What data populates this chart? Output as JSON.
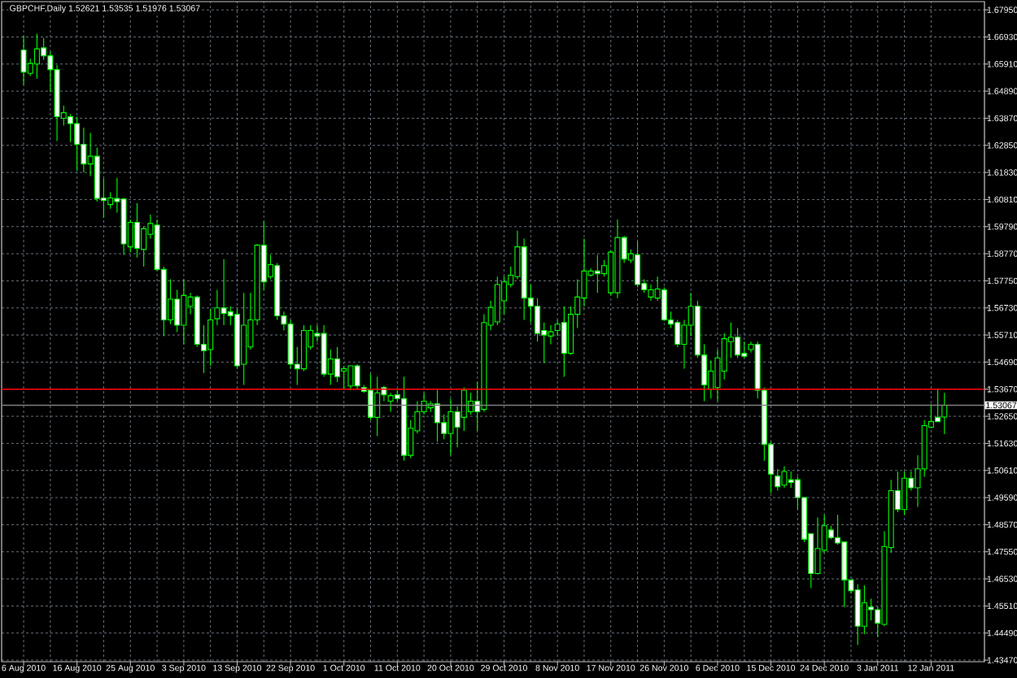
{
  "chart_data": {
    "type": "candlestick",
    "title": "GBPCHF,Daily 1.52621 1.53535 1.51976 1.53067",
    "categories": [
      "6 Aug 2010",
      null,
      null,
      null,
      null,
      null,
      null,
      null,
      "16 Aug 2010",
      null,
      null,
      null,
      null,
      null,
      null,
      null,
      "25 Aug 2010",
      null,
      null,
      null,
      null,
      null,
      null,
      null,
      "3 Sep 2010",
      null,
      null,
      null,
      null,
      null,
      null,
      null,
      "13 Sep 2010",
      null,
      null,
      null,
      null,
      null,
      null,
      null,
      "22 Sep 2010",
      null,
      null,
      null,
      null,
      null,
      null,
      null,
      "1 Oct 2010",
      null,
      null,
      null,
      null,
      null,
      null,
      null,
      "11 Oct 2010",
      null,
      null,
      null,
      null,
      null,
      null,
      null,
      "20 Oct 2010",
      null,
      null,
      null,
      null,
      null,
      null,
      null,
      "29 Oct 2010",
      null,
      null,
      null,
      null,
      null,
      null,
      null,
      "8 Nov 2010",
      null,
      null,
      null,
      null,
      null,
      null,
      null,
      "17 Nov 2010",
      null,
      null,
      null,
      null,
      null,
      null,
      null,
      "26 Nov 2010",
      null,
      null,
      null,
      null,
      null,
      null,
      null,
      "6 Dec 2010",
      null,
      null,
      null,
      null,
      null,
      null,
      null,
      "15 Dec 2010",
      null,
      null,
      null,
      null,
      null,
      null,
      null,
      "24 Dec 2010",
      null,
      null,
      null,
      null,
      null,
      null,
      null,
      "3 Jan 2011",
      null,
      null,
      null,
      null,
      null,
      null,
      null,
      "12 Jan 2011",
      null,
      null
    ],
    "ohlc": [
      [
        1.6644,
        1.6697,
        1.6513,
        1.6561
      ],
      [
        1.6556,
        1.6611,
        1.6546,
        1.6593
      ],
      [
        1.6591,
        1.6705,
        1.6536,
        1.6648
      ],
      [
        1.6652,
        1.6689,
        1.6607,
        1.6622
      ],
      [
        1.6622,
        1.6638,
        1.6485,
        1.657
      ],
      [
        1.657,
        1.6587,
        1.6301,
        1.6393
      ],
      [
        1.6387,
        1.6434,
        1.6359,
        1.6408
      ],
      [
        1.6393,
        1.6403,
        1.6297,
        1.6367
      ],
      [
        1.6367,
        1.6393,
        1.6189,
        1.6289
      ],
      [
        1.6289,
        1.6352,
        1.6183,
        1.6215
      ],
      [
        1.6215,
        1.6332,
        1.6169,
        1.6244
      ],
      [
        1.6244,
        1.6277,
        1.6073,
        1.6085
      ],
      [
        1.6087,
        1.6159,
        1.6012,
        1.6077
      ],
      [
        1.6062,
        1.6108,
        1.6046,
        1.6087
      ],
      [
        1.6085,
        1.6163,
        1.6032,
        1.6073
      ],
      [
        1.6083,
        1.6087,
        1.5873,
        1.5914
      ],
      [
        1.5903,
        1.6006,
        1.5883,
        1.5995
      ],
      [
        1.5995,
        1.6067,
        1.5863,
        1.5897
      ],
      [
        1.5893,
        1.5979,
        1.5828,
        1.5971
      ],
      [
        1.595,
        1.6024,
        1.5934,
        1.5991
      ],
      [
        1.5985,
        1.6006,
        1.5812,
        1.5818
      ],
      [
        1.5818,
        1.5828,
        1.5567,
        1.5628
      ],
      [
        1.5628,
        1.5781,
        1.5612,
        1.5706
      ],
      [
        1.5706,
        1.5741,
        1.5583,
        1.5608
      ],
      [
        1.5608,
        1.5781,
        1.5536,
        1.572
      ],
      [
        1.5679,
        1.573,
        1.5649,
        1.5714
      ],
      [
        1.5714,
        1.572,
        1.5526,
        1.5536
      ],
      [
        1.5536,
        1.5608,
        1.5428,
        1.5512
      ],
      [
        1.5516,
        1.5669,
        1.5455,
        1.5628
      ],
      [
        1.5632,
        1.5741,
        1.5608,
        1.5673
      ],
      [
        1.5673,
        1.5857,
        1.5608,
        1.5652
      ],
      [
        1.5659,
        1.5679,
        1.5608,
        1.5643
      ],
      [
        1.5649,
        1.5669,
        1.5444,
        1.5455
      ],
      [
        1.5461,
        1.573,
        1.5383,
        1.5608
      ],
      [
        1.5526,
        1.573,
        1.5516,
        1.5628
      ],
      [
        1.5628,
        1.5914,
        1.5608,
        1.5909
      ],
      [
        1.5909,
        1.5999,
        1.5741,
        1.5771
      ],
      [
        1.5791,
        1.5873,
        1.5781,
        1.5836
      ],
      [
        1.5832,
        1.5842,
        1.5628,
        1.5643
      ],
      [
        1.5643,
        1.5659,
        1.5588,
        1.5612
      ],
      [
        1.5612,
        1.5628,
        1.5444,
        1.5461
      ],
      [
        1.5461,
        1.5526,
        1.5383,
        1.5444
      ],
      [
        1.5444,
        1.5608,
        1.5435,
        1.5588
      ],
      [
        1.5526,
        1.5608,
        1.5516,
        1.5588
      ],
      [
        1.5577,
        1.5608,
        1.5546,
        1.5567
      ],
      [
        1.5577,
        1.5608,
        1.5414,
        1.5424
      ],
      [
        1.5424,
        1.5516,
        1.5383,
        1.5481
      ],
      [
        1.5481,
        1.5526,
        1.5394,
        1.5414
      ],
      [
        1.5435,
        1.5455,
        1.5367,
        1.5444
      ],
      [
        1.5379,
        1.5455,
        1.5363,
        1.5455
      ],
      [
        1.5455,
        1.5461,
        1.5367,
        1.5379
      ],
      [
        1.5373,
        1.5383,
        1.5353,
        1.5359
      ],
      [
        1.5363,
        1.5424,
        1.5251,
        1.5261
      ],
      [
        1.5261,
        1.5414,
        1.519,
        1.5353
      ],
      [
        1.5373,
        1.5379,
        1.5322,
        1.5346
      ],
      [
        1.5322,
        1.5353,
        1.5282,
        1.5343
      ],
      [
        1.5346,
        1.5363,
        1.5322,
        1.5332
      ],
      [
        1.5332,
        1.5414,
        1.5098,
        1.5118
      ],
      [
        1.5118,
        1.5251,
        1.5108,
        1.522
      ],
      [
        1.521,
        1.5322,
        1.52,
        1.5282
      ],
      [
        1.5282,
        1.5353,
        1.5271,
        1.5322
      ],
      [
        1.5297,
        1.5322,
        1.5282,
        1.5312
      ],
      [
        1.5312,
        1.5363,
        1.5169,
        1.5241
      ],
      [
        1.5241,
        1.5271,
        1.5179,
        1.52
      ],
      [
        1.52,
        1.5332,
        1.5118,
        1.5282
      ],
      [
        1.5282,
        1.5302,
        1.5149,
        1.5224
      ],
      [
        1.5261,
        1.5373,
        1.521,
        1.5363
      ],
      [
        1.5282,
        1.5353,
        1.5271,
        1.5322
      ],
      [
        1.5322,
        1.5394,
        1.521,
        1.5282
      ],
      [
        1.5291,
        1.5649,
        1.5282,
        1.5618
      ],
      [
        1.5608,
        1.57,
        1.5589,
        1.5675
      ],
      [
        1.562,
        1.5791,
        1.5608,
        1.5761
      ],
      [
        1.57,
        1.5791,
        1.5649,
        1.5771
      ],
      [
        1.5761,
        1.5828,
        1.575,
        1.5796
      ],
      [
        1.5791,
        1.5964,
        1.5781,
        1.5903
      ],
      [
        1.5903,
        1.5934,
        1.5628,
        1.571
      ],
      [
        1.571,
        1.5761,
        1.5618,
        1.5679
      ],
      [
        1.5679,
        1.571,
        1.5546,
        1.5577
      ],
      [
        1.5588,
        1.5618,
        1.5465,
        1.5571
      ],
      [
        1.5567,
        1.5608,
        1.5536,
        1.5583
      ],
      [
        1.5588,
        1.5628,
        1.5567,
        1.5612
      ],
      [
        1.5618,
        1.5679,
        1.5414,
        1.5502
      ],
      [
        1.5502,
        1.5679,
        1.5496,
        1.5649
      ],
      [
        1.5649,
        1.5781,
        1.5597,
        1.5714
      ],
      [
        1.571,
        1.5934,
        1.5679,
        1.5812
      ],
      [
        1.5796,
        1.5822,
        1.5791,
        1.5812
      ],
      [
        1.5812,
        1.5873,
        1.573,
        1.5802
      ],
      [
        1.5802,
        1.5853,
        1.5791,
        1.5832
      ],
      [
        1.573,
        1.5889,
        1.572,
        1.5883
      ],
      [
        1.573,
        1.6006,
        1.571,
        1.5938
      ],
      [
        1.5938,
        1.5944,
        1.5842,
        1.5857
      ],
      [
        1.5853,
        1.5893,
        1.5842,
        1.5877
      ],
      [
        1.5873,
        1.5924,
        1.575,
        1.5761
      ],
      [
        1.5765,
        1.5781,
        1.573,
        1.5741
      ],
      [
        1.5714,
        1.5761,
        1.57,
        1.5741
      ],
      [
        1.571,
        1.5791,
        1.57,
        1.5744
      ],
      [
        1.5741,
        1.575,
        1.5624,
        1.5628
      ],
      [
        1.5628,
        1.5659,
        1.5597,
        1.5612
      ],
      [
        1.5618,
        1.5628,
        1.5526,
        1.5536
      ],
      [
        1.5536,
        1.5628,
        1.5444,
        1.5608
      ],
      [
        1.5608,
        1.573,
        1.5567,
        1.5679
      ],
      [
        1.5679,
        1.57,
        1.5485,
        1.5496
      ],
      [
        1.5496,
        1.5536,
        1.5322,
        1.5383
      ],
      [
        1.5367,
        1.5475,
        1.5332,
        1.5435
      ],
      [
        1.5373,
        1.5516,
        1.5322,
        1.5485
      ],
      [
        1.5435,
        1.5577,
        1.5404,
        1.5557
      ],
      [
        1.5546,
        1.5618,
        1.5485,
        1.5563
      ],
      [
        1.5563,
        1.5597,
        1.5485,
        1.5496
      ],
      [
        1.5502,
        1.5546,
        1.5485,
        1.5491
      ],
      [
        1.5516,
        1.5546,
        1.5505,
        1.5536
      ],
      [
        1.5536,
        1.5546,
        1.5332,
        1.5363
      ],
      [
        1.5363,
        1.5373,
        1.5098,
        1.5159
      ],
      [
        1.5159,
        1.5169,
        1.4976,
        1.5047
      ],
      [
        1.504,
        1.5067,
        1.4985,
        1.5
      ],
      [
        1.5006,
        1.5077,
        1.4996,
        1.5057
      ],
      [
        1.5026,
        1.5057,
        1.4996,
        1.5016
      ],
      [
        1.5026,
        1.5037,
        1.4914,
        1.4959
      ],
      [
        1.4959,
        1.4959,
        1.4792,
        1.4802
      ],
      [
        1.4823,
        1.4823,
        1.4618,
        1.4673
      ],
      [
        1.4673,
        1.4884,
        1.4669,
        1.4767
      ],
      [
        1.4761,
        1.4894,
        1.4751,
        1.4853
      ],
      [
        1.4837,
        1.4853,
        1.4802,
        1.4808
      ],
      [
        1.4808,
        1.4894,
        1.4782,
        1.4788
      ],
      [
        1.4792,
        1.4792,
        1.4547,
        1.4649
      ],
      [
        1.4649,
        1.4649,
        1.4598,
        1.4608
      ],
      [
        1.4612,
        1.4633,
        1.4404,
        1.4475
      ],
      [
        1.4475,
        1.4629,
        1.4445,
        1.4563
      ],
      [
        1.4547,
        1.4578,
        1.4496,
        1.4537
      ],
      [
        1.4537,
        1.4547,
        1.4434,
        1.4486
      ],
      [
        1.4482,
        1.4832,
        1.4475,
        1.4775
      ],
      [
        1.4771,
        1.5026,
        1.4751,
        1.4985
      ],
      [
        1.4985,
        1.5057,
        1.4904,
        1.4914
      ],
      [
        1.4914,
        1.5057,
        1.4894,
        1.5032
      ],
      [
        1.5032,
        1.5057,
        1.4985,
        1.4996
      ],
      [
        1.4996,
        1.5118,
        1.4924,
        1.5067
      ],
      [
        1.5067,
        1.5251,
        1.5037,
        1.523
      ],
      [
        1.5224,
        1.5312,
        1.522,
        1.5245
      ],
      [
        1.5261,
        1.5367,
        1.5245,
        1.5245
      ],
      [
        1.52621,
        1.53535,
        1.51976,
        1.53067
      ]
    ],
    "color": "#00ff00",
    "colors": [
      "#ffffff",
      "#000000",
      "#000000",
      "#ffffff",
      "#ffffff",
      "#ffffff",
      "#000000",
      "#ffffff",
      "#ffffff",
      "#ffffff",
      "#000000",
      "#ffffff",
      "#ffffff",
      "#000000",
      "#ffffff",
      "#ffffff",
      "#000000",
      "#ffffff",
      "#000000",
      "#000000",
      "#ffffff",
      "#ffffff",
      "#000000",
      "#ffffff",
      "#000000",
      "#000000",
      "#ffffff",
      "#ffffff",
      "#000000",
      "#000000",
      "#ffffff",
      "#ffffff",
      "#ffffff",
      "#000000",
      "#000000",
      "#000000",
      "#ffffff",
      "#000000",
      "#ffffff",
      "#ffffff",
      "#ffffff",
      "#ffffff",
      "#000000",
      "#000000",
      "#ffffff",
      "#ffffff",
      "#000000",
      "#ffffff",
      "#000000",
      "#000000",
      "#ffffff",
      "#ffffff",
      "#ffffff",
      "#000000",
      "#ffffff",
      "#000000",
      "#ffffff",
      "#ffffff",
      "#000000",
      "#000000",
      "#000000",
      "#000000",
      "#ffffff",
      "#ffffff",
      "#000000",
      "#ffffff",
      "#000000",
      "#000000",
      "#ffffff",
      "#000000",
      "#000000",
      "#000000",
      "#000000",
      "#000000",
      "#000000",
      "#ffffff",
      "#ffffff",
      "#ffffff",
      "#ffffff",
      "#000000",
      "#000000",
      "#ffffff",
      "#000000",
      "#000000",
      "#000000",
      "#000000",
      "#ffffff",
      "#000000",
      "#000000",
      "#000000",
      "#ffffff",
      "#000000",
      "#ffffff",
      "#ffffff",
      "#000000",
      "#000000",
      "#ffffff",
      "#ffffff",
      "#ffffff",
      "#000000",
      "#000000",
      "#ffffff",
      "#ffffff",
      "#000000",
      "#000000",
      "#000000",
      "#000000",
      "#ffffff",
      "#ffffff",
      "#000000",
      "#ffffff",
      "#ffffff",
      "#ffffff",
      "#ffffff",
      "#000000",
      "#ffffff",
      "#ffffff",
      "#ffffff",
      "#ffffff",
      "#000000",
      "#000000",
      "#ffffff",
      "#ffffff",
      "#ffffff",
      "#ffffff",
      "#ffffff",
      "#000000",
      "#ffffff",
      "#ffffff",
      "#000000",
      "#000000",
      "#ffffff",
      "#000000",
      "#ffffff",
      "#000000",
      "#000000",
      "#000000",
      "#ffffff",
      "#000000"
    ],
    "ylim": [
      1.4341,
      1.6826
    ],
    "yticks": [
      {
        "value": 1.4347,
        "label": "1.43470"
      },
      {
        "value": 1.4449,
        "label": "1.44490"
      },
      {
        "value": 1.4551,
        "label": "1.45510"
      },
      {
        "value": 1.4653,
        "label": "1.46530"
      },
      {
        "value": 1.4755,
        "label": "1.47550"
      },
      {
        "value": 1.4857,
        "label": "1.48570"
      },
      {
        "value": 1.4959,
        "label": "1.49590"
      },
      {
        "value": 1.5061,
        "label": "1.50610"
      },
      {
        "value": 1.5163,
        "label": "1.51630"
      },
      {
        "value": 1.5265,
        "label": "1.52650"
      },
      {
        "value": 1.5367,
        "label": "1.53670"
      },
      {
        "value": 1.5469,
        "label": "1.54690"
      },
      {
        "value": 1.5571,
        "label": "1.55710"
      },
      {
        "value": 1.5673,
        "label": "1.56730"
      },
      {
        "value": 1.5775,
        "label": "1.57750"
      },
      {
        "value": 1.5877,
        "label": "1.58770"
      },
      {
        "value": 1.5979,
        "label": "1.59790"
      },
      {
        "value": 1.6081,
        "label": "1.60810"
      },
      {
        "value": 1.6183,
        "label": "1.61830"
      },
      {
        "value": 1.6285,
        "label": "1.62850"
      },
      {
        "value": 1.6387,
        "label": "1.63870"
      },
      {
        "value": 1.6489,
        "label": "1.64890"
      },
      {
        "value": 1.6591,
        "label": "1.65910"
      },
      {
        "value": 1.6693,
        "label": "1.66930"
      },
      {
        "value": 1.6795,
        "label": "1.67950"
      }
    ],
    "grid": true,
    "ref_lines": [
      {
        "axis": "y",
        "value": 1.5367,
        "color": "#ff0000"
      },
      {
        "axis": "y",
        "value": 1.53067,
        "label": "1.53067",
        "color": "#808080"
      }
    ]
  }
}
